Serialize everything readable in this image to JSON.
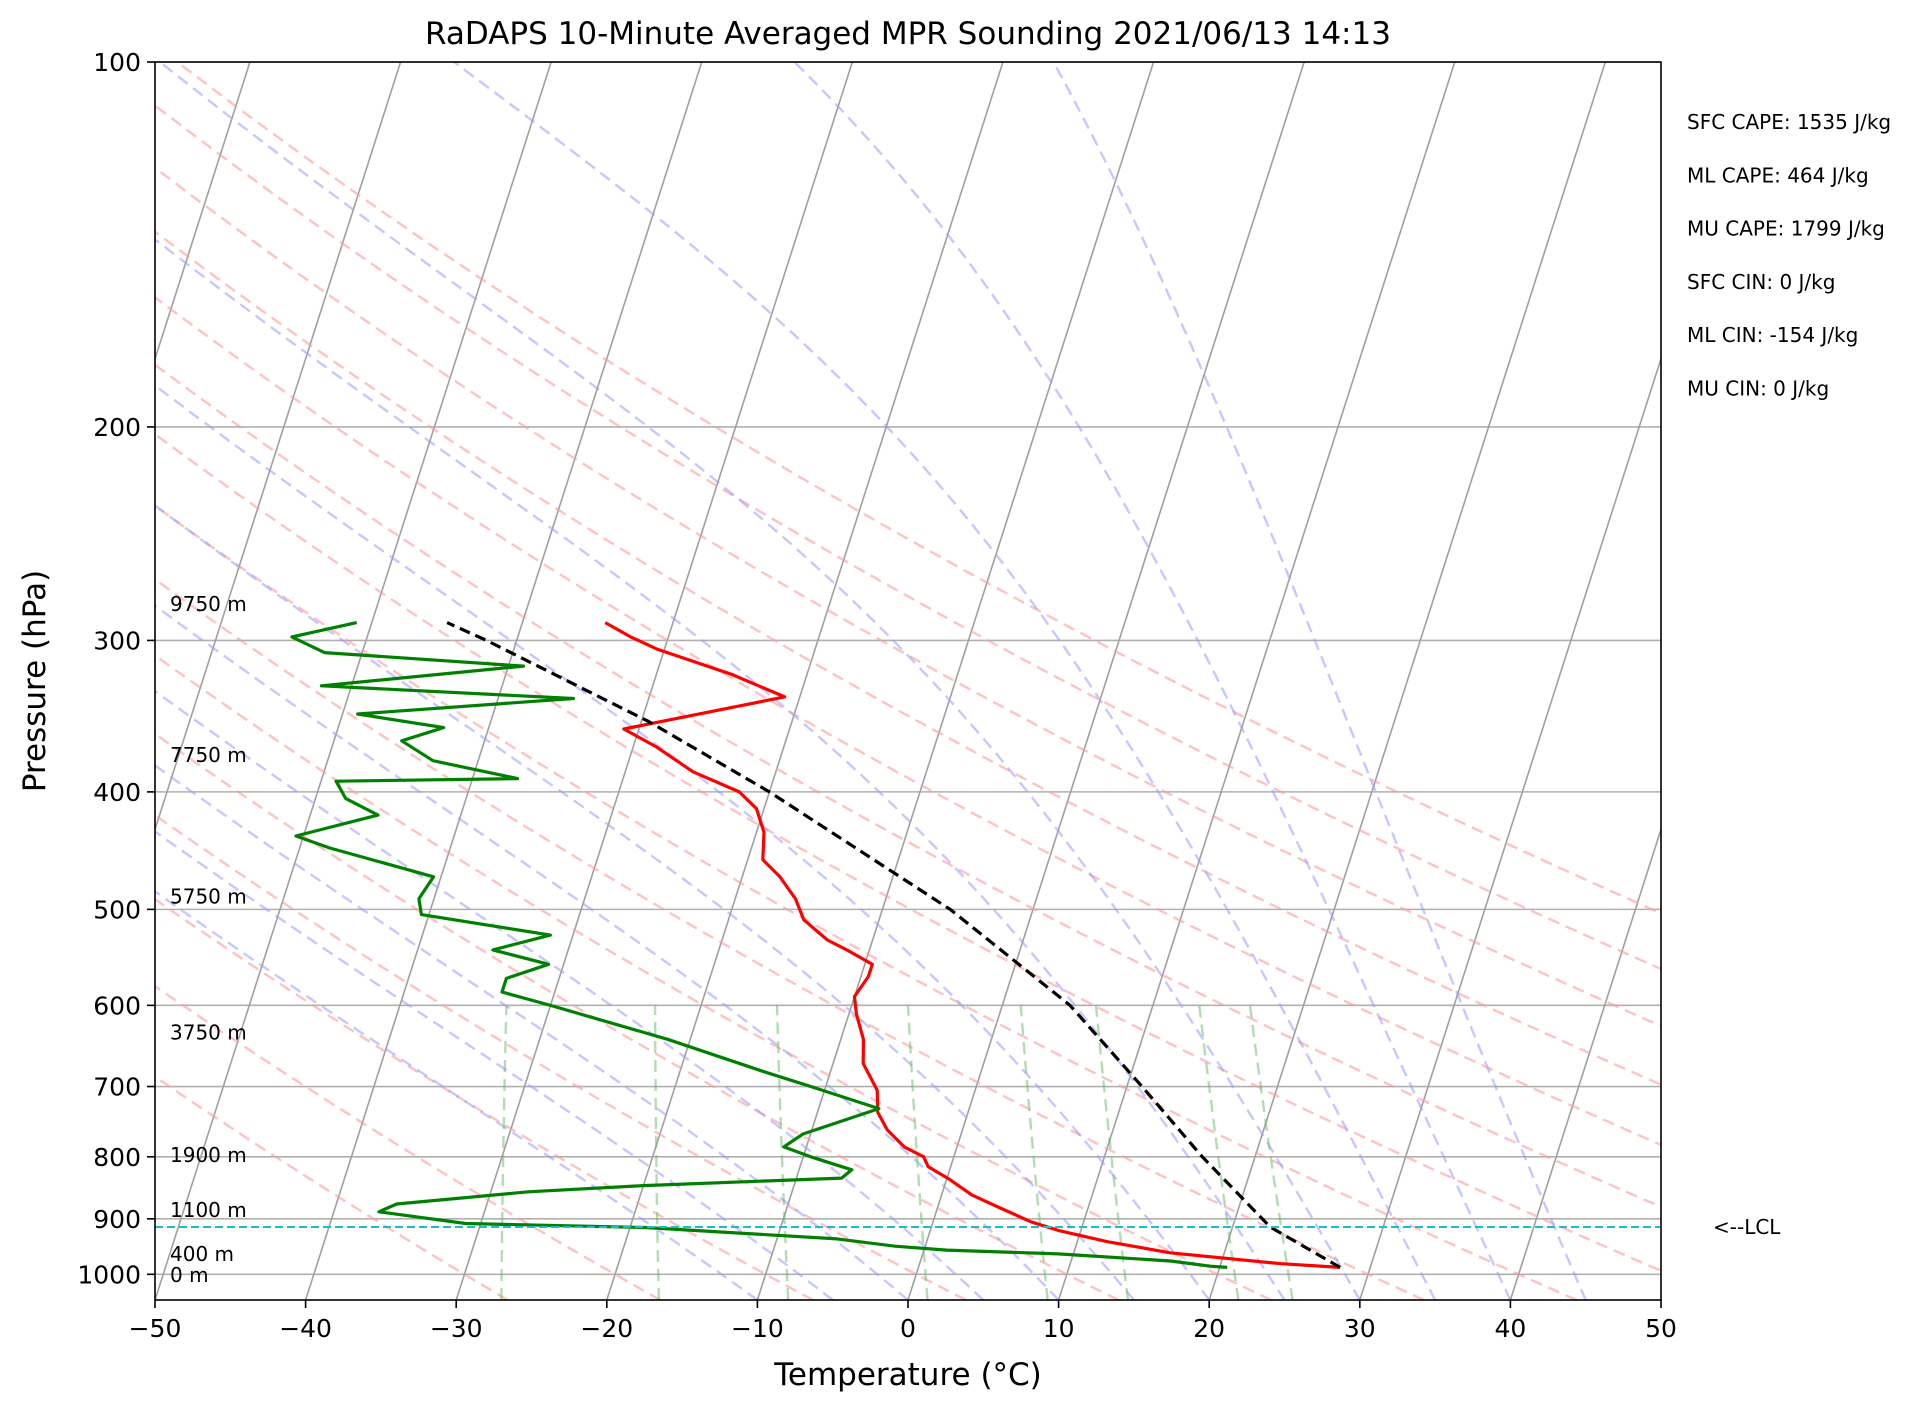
{
  "chart_data": {
    "type": "line",
    "title": "RaDAPS 10-Minute Averaged MPR Sounding 2021/06/13 14:13",
    "xlabel": "Temperature (°C)",
    "ylabel": "Pressure (hPa)",
    "xlim": [
      -50,
      50
    ],
    "ylim": [
      1050,
      100
    ],
    "y_scale": "log",
    "skew_t": true,
    "grid": true,
    "x_ticks": [
      "−50",
      "−40",
      "−30",
      "−20",
      "−10",
      "0",
      "10",
      "20",
      "30",
      "40",
      "50"
    ],
    "y_ticks": [
      "100",
      "200",
      "300",
      "400",
      "500",
      "600",
      "700",
      "800",
      "900",
      "1000"
    ],
    "height_labels": [
      {
        "text": "9750 m",
        "p": 280
      },
      {
        "text": "7750 m",
        "p": 373
      },
      {
        "text": "5750 m",
        "p": 488
      },
      {
        "text": "3750 m",
        "p": 632
      },
      {
        "text": "1900 m",
        "p": 797
      },
      {
        "text": "1100 m",
        "p": 885
      },
      {
        "text": "400 m",
        "p": 962
      },
      {
        "text": "0 m",
        "p": 1001
      }
    ],
    "stats": [
      "SFC CAPE: 1535 J/kg",
      "ML CAPE: 464 J/kg",
      "MU CAPE: 1799 J/kg",
      "SFC CIN: 0 J/kg",
      "ML CIN: -154 J/kg",
      "MU CIN: 0 J/kg"
    ],
    "lcl": {
      "label": "<--LCL",
      "p": 914,
      "color": "#17becf"
    },
    "series": [
      {
        "role": "temperature",
        "color": "#ff0000",
        "points": [
          [
            987,
            28.0
          ],
          [
            980,
            24.0
          ],
          [
            960,
            16.4
          ],
          [
            940,
            12.0
          ],
          [
            920,
            8.5
          ],
          [
            905,
            6.5
          ],
          [
            880,
            4.0
          ],
          [
            860,
            2.0
          ],
          [
            835,
            0.2
          ],
          [
            815,
            -1.5
          ],
          [
            800,
            -2.0
          ],
          [
            785,
            -3.5
          ],
          [
            760,
            -5.0
          ],
          [
            735,
            -6.0
          ],
          [
            705,
            -6.5
          ],
          [
            670,
            -8.0
          ],
          [
            640,
            -8.5
          ],
          [
            610,
            -9.5
          ],
          [
            590,
            -10.0
          ],
          [
            568,
            -9.5
          ],
          [
            555,
            -9.5
          ],
          [
            540,
            -11.5
          ],
          [
            530,
            -13.0
          ],
          [
            510,
            -15.0
          ],
          [
            490,
            -16.0
          ],
          [
            470,
            -17.5
          ],
          [
            455,
            -19.0
          ],
          [
            432,
            -19.5
          ],
          [
            413,
            -20.5
          ],
          [
            400,
            -22.0
          ],
          [
            385,
            -25.5
          ],
          [
            367,
            -28.5
          ],
          [
            355,
            -31.0
          ],
          [
            334,
            -21.0
          ],
          [
            320,
            -25.0
          ],
          [
            305,
            -30.5
          ],
          [
            298,
            -32.5
          ],
          [
            290,
            -34.5
          ]
        ]
      },
      {
        "role": "dewpoint",
        "color": "#008000",
        "points": [
          [
            987,
            20.5
          ],
          [
            985,
            19.5
          ],
          [
            975,
            16.6
          ],
          [
            962,
            9.0
          ],
          [
            955,
            1.5
          ],
          [
            948,
            -2.0
          ],
          [
            935,
            -6.0
          ],
          [
            915,
            -19.0
          ],
          [
            908,
            -31.0
          ],
          [
            888,
            -37.0
          ],
          [
            875,
            -36.0
          ],
          [
            855,
            -27.5
          ],
          [
            845,
            -20.0
          ],
          [
            833,
            -7.0
          ],
          [
            820,
            -6.5
          ],
          [
            800,
            -9.5
          ],
          [
            785,
            -11.5
          ],
          [
            766,
            -10.5
          ],
          [
            730,
            -6.0
          ],
          [
            700,
            -11.0
          ],
          [
            680,
            -14.5
          ],
          [
            640,
            -21.5
          ],
          [
            600,
            -30.0
          ],
          [
            585,
            -33.5
          ],
          [
            570,
            -33.5
          ],
          [
            555,
            -31.0
          ],
          [
            540,
            -35.0
          ],
          [
            525,
            -31.5
          ],
          [
            505,
            -40.5
          ],
          [
            490,
            -41.0
          ],
          [
            470,
            -40.5
          ],
          [
            445,
            -48.0
          ],
          [
            435,
            -50.5
          ],
          [
            418,
            -45.5
          ],
          [
            405,
            -48.0
          ],
          [
            392,
            -49.0
          ],
          [
            390,
            -37.0
          ],
          [
            377,
            -43.0
          ],
          [
            363,
            -45.5
          ],
          [
            354,
            -43.0
          ],
          [
            345,
            -49.0
          ],
          [
            335,
            -35.0
          ],
          [
            327,
            -52.0
          ],
          [
            315,
            -39.0
          ],
          [
            307,
            -52.5
          ],
          [
            298,
            -55.0
          ],
          [
            290,
            -51.0
          ]
        ]
      },
      {
        "role": "parcel",
        "color": "#000000",
        "dashed": true,
        "points": [
          [
            987,
            28.0
          ],
          [
            914,
            22.5
          ],
          [
            800,
            16.5
          ],
          [
            700,
            11.0
          ],
          [
            600,
            4.5
          ],
          [
            500,
            -5.5
          ],
          [
            400,
            -20.0
          ],
          [
            350,
            -29.5
          ],
          [
            300,
            -42.0
          ],
          [
            290,
            -45.0
          ]
        ]
      }
    ]
  }
}
